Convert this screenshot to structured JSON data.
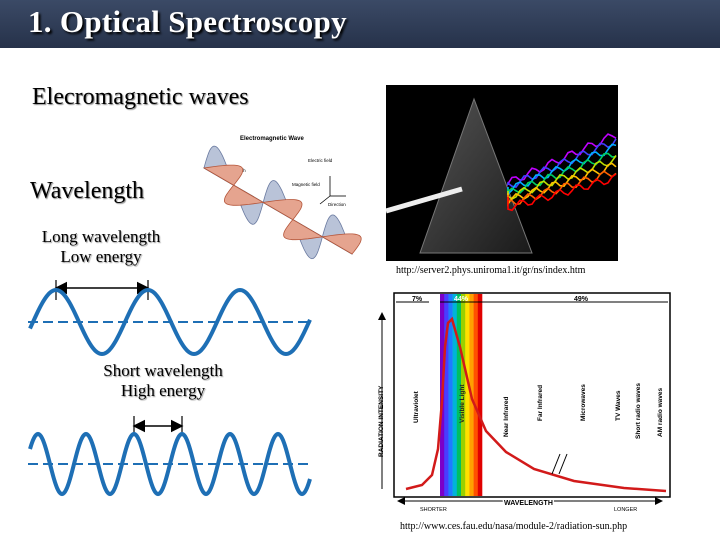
{
  "slide": {
    "title": "1. Optical Spectroscopy",
    "heading_em": "Elecromagnetic waves",
    "heading_wavelength": "Wavelength",
    "long_line1": "Long wavelength",
    "long_line2": "Low energy",
    "short_line1": "Short wavelength",
    "short_line2": "High energy"
  },
  "em_diagram": {
    "title": "Electromagnetic Wave",
    "wavelength": "Wavelength",
    "electric": "Electric field",
    "magnetic": "Magnetic field",
    "direction": "Direction"
  },
  "prism": {
    "source_url": "http://server2.phys.uniroma1.it/gr/ns/index.htm"
  },
  "spectrum": {
    "percent_uv": "7%",
    "percent_visible": "44%",
    "percent_ir": "49%",
    "y_axis": "RADIATION INTENSITY",
    "x_axis": "WAVELENGTH",
    "shorter": "SHORTER",
    "longer": "LONGER",
    "bands": [
      "Ultraviolet",
      "Visible Light",
      "Near Infrared",
      "Far Infrared",
      "Microwaves",
      "TV Waves",
      "Short radio waves",
      "AM radio waves"
    ],
    "source_url": "http://www.ces.fau.edu/nasa/module-2/radiation-sun.php"
  },
  "colors": {
    "wave": "#1e6fb5",
    "title_bg": "#2e3a52",
    "curve": "#d21a1a"
  }
}
